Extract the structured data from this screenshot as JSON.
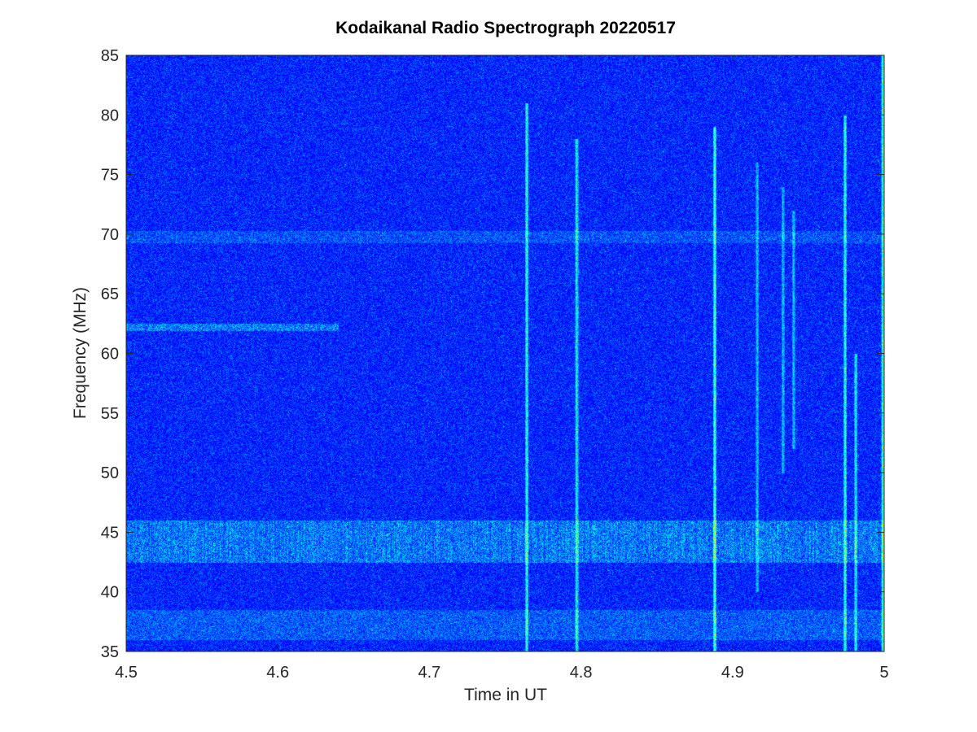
{
  "chart_data": {
    "type": "heatmap",
    "title": "Kodaikanal Radio Spectrograph  20220517",
    "xlabel": "Time in UT",
    "ylabel": "Frequency (MHz)",
    "xlim": [
      4.5,
      5
    ],
    "ylim": [
      35,
      85
    ],
    "x_ticks": [
      4.5,
      4.6,
      4.7,
      4.8,
      4.9,
      5
    ],
    "x_tick_labels": [
      "4.5",
      "4.6",
      "4.7",
      "4.8",
      "4.9",
      "5"
    ],
    "y_ticks": [
      35,
      40,
      45,
      50,
      55,
      60,
      65,
      70,
      75,
      80,
      85
    ],
    "y_tick_labels": [
      "35",
      "40",
      "45",
      "50",
      "55",
      "60",
      "65",
      "70",
      "75",
      "80",
      "85"
    ],
    "grid": false,
    "colormap": "jet",
    "background_color": "#0a1ad0",
    "features": {
      "horizontal_bands_mhz": [
        {
          "freq_min": 42.5,
          "freq_max": 46,
          "time_start": 4.5,
          "time_end": 5,
          "intensity": 0.55
        },
        {
          "freq_min": 61.9,
          "freq_max": 62.5,
          "time_start": 4.5,
          "time_end": 4.64,
          "intensity": 0.6
        },
        {
          "freq_min": 36,
          "freq_max": 38.5,
          "time_start": 4.5,
          "time_end": 5,
          "intensity": 0.35
        },
        {
          "freq_min": 69.3,
          "freq_max": 70.3,
          "time_start": 4.5,
          "time_end": 5,
          "intensity": 0.3
        }
      ],
      "vertical_bursts_ut": [
        {
          "time": 4.764,
          "freq_min": 35,
          "freq_max": 81,
          "intensity": 0.8
        },
        {
          "time": 4.797,
          "freq_min": 35,
          "freq_max": 78,
          "intensity": 0.7
        },
        {
          "time": 4.888,
          "freq_min": 35,
          "freq_max": 79,
          "intensity": 0.95
        },
        {
          "time": 4.916,
          "freq_min": 40,
          "freq_max": 76,
          "intensity": 0.5
        },
        {
          "time": 4.933,
          "freq_min": 50,
          "freq_max": 74,
          "intensity": 0.5
        },
        {
          "time": 4.94,
          "freq_min": 52,
          "freq_max": 72,
          "intensity": 0.5
        },
        {
          "time": 4.974,
          "freq_min": 35,
          "freq_max": 80,
          "intensity": 0.85
        },
        {
          "time": 4.981,
          "freq_min": 35,
          "freq_max": 60,
          "intensity": 0.7
        },
        {
          "time": 4.999,
          "freq_min": 35,
          "freq_max": 85,
          "intensity": 0.9
        }
      ]
    }
  }
}
